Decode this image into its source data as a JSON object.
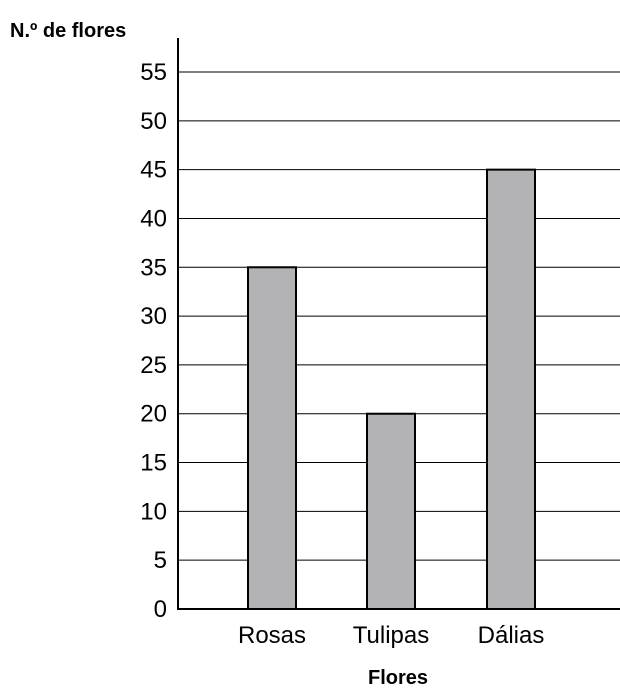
{
  "chart_data": {
    "type": "bar",
    "title": "",
    "ylabel": "N.º de flores",
    "xlabel": "Flores",
    "categories": [
      "Rosas",
      "Tulipas",
      "Dálias"
    ],
    "series": [
      {
        "values": [
          35,
          20,
          45
        ]
      }
    ],
    "ylim": [
      0,
      55
    ],
    "yticks": [
      "0",
      "5",
      "10",
      "15",
      "20",
      "25",
      "30",
      "35",
      "40",
      "45",
      "50",
      "55"
    ],
    "grid": true,
    "legend": "none",
    "bar_color": "#b3b3b5"
  }
}
